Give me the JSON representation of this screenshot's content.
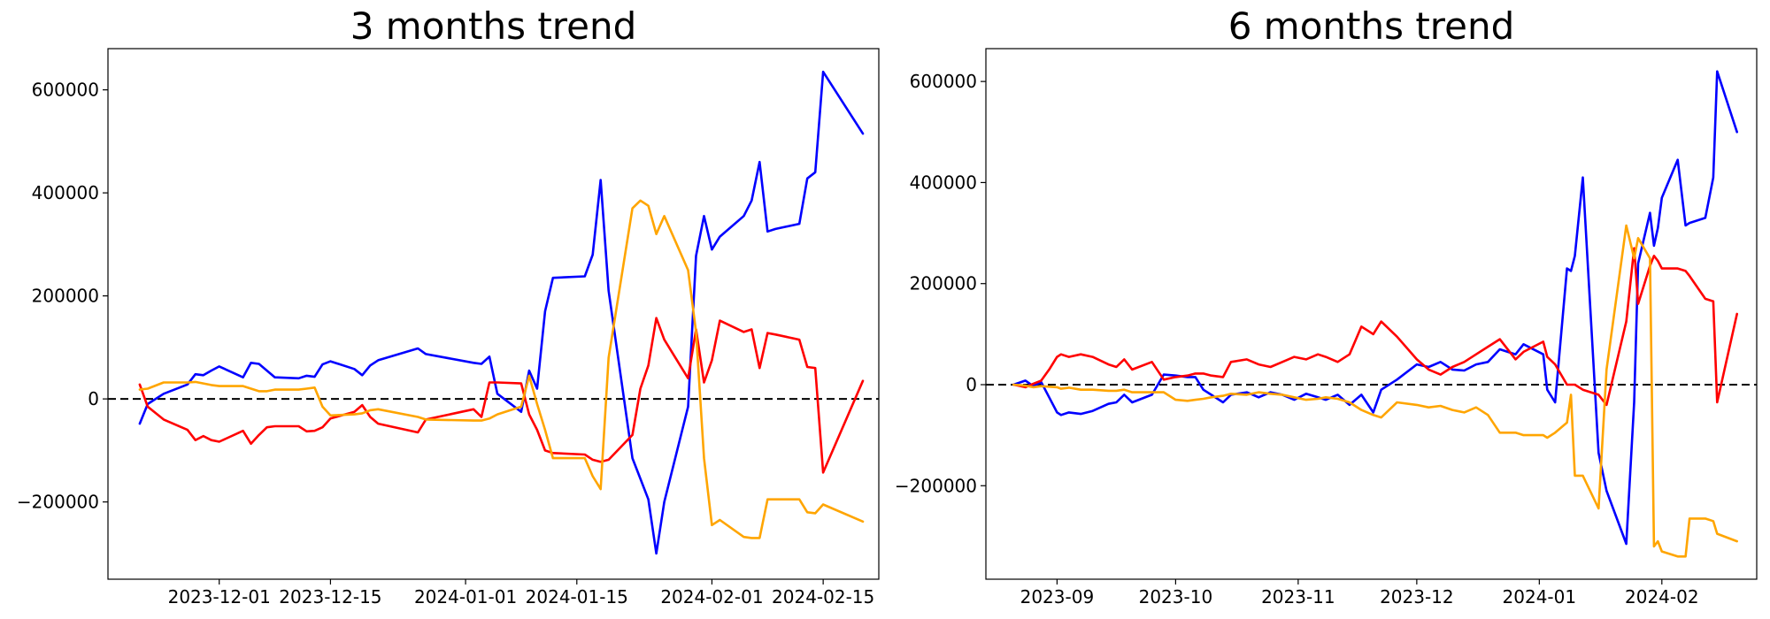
{
  "chart_data": [
    {
      "type": "line",
      "title": "3 months trend",
      "xlabel": "",
      "ylabel": "",
      "x_type": "date",
      "xlim": [
        "2023-11-17",
        "2024-02-22"
      ],
      "ylim": [
        -350000,
        680000
      ],
      "x_ticks": [
        "2023-12-01",
        "2023-12-15",
        "2024-01-01",
        "2024-01-15",
        "2024-02-01",
        "2024-02-15"
      ],
      "y_ticks": [
        600000,
        400000,
        200000,
        0,
        -200000
      ],
      "y_tick_labels": [
        "600000",
        "400000",
        "200000",
        "0",
        "−200000"
      ],
      "reference_line": {
        "y": 0,
        "style": "dashed",
        "color": "#000000"
      },
      "grid": false,
      "series": [
        {
          "color": "#0000ff",
          "x": [
            "2023-11-21",
            "2023-11-22",
            "2023-11-24",
            "2023-11-27",
            "2023-11-28",
            "2023-11-29",
            "2023-11-30",
            "2023-12-01",
            "2023-12-04",
            "2023-12-05",
            "2023-12-06",
            "2023-12-07",
            "2023-12-08",
            "2023-12-11",
            "2023-12-12",
            "2023-12-13",
            "2023-12-14",
            "2023-12-15",
            "2023-12-18",
            "2023-12-19",
            "2023-12-20",
            "2023-12-21",
            "2023-12-26",
            "2023-12-27",
            "2024-01-02",
            "2024-01-03",
            "2024-01-04",
            "2024-01-05",
            "2024-01-08",
            "2024-01-09",
            "2024-01-10",
            "2024-01-11",
            "2024-01-12",
            "2024-01-16",
            "2024-01-17",
            "2024-01-18",
            "2024-01-19",
            "2024-01-22",
            "2024-01-23",
            "2024-01-24",
            "2024-01-25",
            "2024-01-26",
            "2024-01-29",
            "2024-01-30",
            "2024-01-31",
            "2024-02-01",
            "2024-02-02",
            "2024-02-05",
            "2024-02-06",
            "2024-02-07",
            "2024-02-08",
            "2024-02-09",
            "2024-02-12",
            "2024-02-13",
            "2024-02-14",
            "2024-02-15",
            "2024-02-20"
          ],
          "values": [
            -48000,
            -10000,
            10000,
            28000,
            48000,
            46000,
            55000,
            63000,
            42000,
            70000,
            68000,
            55000,
            42000,
            40000,
            45000,
            43000,
            67000,
            73000,
            58000,
            46000,
            65000,
            75000,
            98000,
            87000,
            70000,
            68000,
            82000,
            10000,
            -25000,
            55000,
            20000,
            170000,
            235000,
            238000,
            280000,
            425000,
            210000,
            -115000,
            -155000,
            -195000,
            -300000,
            -200000,
            -15000,
            278000,
            355000,
            290000,
            315000,
            355000,
            385000,
            460000,
            325000,
            330000,
            340000,
            428000,
            440000,
            635000,
            515000
          ]
        },
        {
          "color": "#ff0000",
          "x": [
            "2023-11-21",
            "2023-11-22",
            "2023-11-24",
            "2023-11-27",
            "2023-11-28",
            "2023-11-29",
            "2023-11-30",
            "2023-12-01",
            "2023-12-04",
            "2023-12-05",
            "2023-12-06",
            "2023-12-07",
            "2023-12-08",
            "2023-12-11",
            "2023-12-12",
            "2023-12-13",
            "2023-12-14",
            "2023-12-15",
            "2023-12-18",
            "2023-12-19",
            "2023-12-20",
            "2023-12-21",
            "2023-12-26",
            "2023-12-27",
            "2024-01-02",
            "2024-01-03",
            "2024-01-04",
            "2024-01-05",
            "2024-01-08",
            "2024-01-09",
            "2024-01-10",
            "2024-01-11",
            "2024-01-12",
            "2024-01-16",
            "2024-01-17",
            "2024-01-18",
            "2024-01-19",
            "2024-01-22",
            "2024-01-23",
            "2024-01-24",
            "2024-01-25",
            "2024-01-26",
            "2024-01-29",
            "2024-01-30",
            "2024-01-31",
            "2024-02-01",
            "2024-02-02",
            "2024-02-05",
            "2024-02-06",
            "2024-02-07",
            "2024-02-08",
            "2024-02-09",
            "2024-02-12",
            "2024-02-13",
            "2024-02-14",
            "2024-02-15",
            "2024-02-20"
          ],
          "values": [
            28000,
            -15000,
            -40000,
            -60000,
            -80000,
            -72000,
            -80000,
            -83000,
            -62000,
            -87000,
            -70000,
            -55000,
            -53000,
            -53000,
            -63000,
            -62000,
            -55000,
            -38000,
            -25000,
            -12000,
            -35000,
            -48000,
            -65000,
            -40000,
            -20000,
            -35000,
            32000,
            32000,
            30000,
            -30000,
            -60000,
            -100000,
            -105000,
            -108000,
            -118000,
            -122000,
            -118000,
            -70000,
            20000,
            65000,
            157000,
            115000,
            40000,
            135000,
            32000,
            75000,
            152000,
            130000,
            135000,
            60000,
            128000,
            125000,
            115000,
            62000,
            60000,
            -143000,
            35000
          ]
        },
        {
          "color": "#ffa500",
          "x": [
            "2023-11-21",
            "2023-11-22",
            "2023-11-24",
            "2023-11-27",
            "2023-11-28",
            "2023-11-29",
            "2023-11-30",
            "2023-12-01",
            "2023-12-04",
            "2023-12-05",
            "2023-12-06",
            "2023-12-07",
            "2023-12-08",
            "2023-12-11",
            "2023-12-12",
            "2023-12-13",
            "2023-12-14",
            "2023-12-15",
            "2023-12-18",
            "2023-12-19",
            "2023-12-20",
            "2023-12-21",
            "2023-12-26",
            "2023-12-27",
            "2024-01-02",
            "2024-01-03",
            "2024-01-04",
            "2024-01-05",
            "2024-01-08",
            "2024-01-09",
            "2024-01-10",
            "2024-01-11",
            "2024-01-12",
            "2024-01-16",
            "2024-01-17",
            "2024-01-18",
            "2024-01-19",
            "2024-01-22",
            "2024-01-23",
            "2024-01-24",
            "2024-01-25",
            "2024-01-26",
            "2024-01-29",
            "2024-01-30",
            "2024-01-31",
            "2024-02-01",
            "2024-02-02",
            "2024-02-05",
            "2024-02-06",
            "2024-02-07",
            "2024-02-08",
            "2024-02-09",
            "2024-02-12",
            "2024-02-13",
            "2024-02-14",
            "2024-02-15",
            "2024-02-20"
          ],
          "values": [
            18000,
            20000,
            32000,
            32000,
            33000,
            30000,
            27000,
            25000,
            25000,
            20000,
            15000,
            15000,
            18000,
            18000,
            20000,
            22000,
            -15000,
            -32000,
            -30000,
            -28000,
            -22000,
            -20000,
            -35000,
            -40000,
            -42000,
            -42000,
            -38000,
            -30000,
            -15000,
            45000,
            -10000,
            -60000,
            -115000,
            -115000,
            -150000,
            -175000,
            80000,
            370000,
            385000,
            375000,
            320000,
            355000,
            250000,
            130000,
            -115000,
            -245000,
            -235000,
            -268000,
            -270000,
            -270000,
            -195000,
            -195000,
            -195000,
            -220000,
            -222000,
            -205000,
            -238000
          ]
        }
      ]
    },
    {
      "type": "line",
      "title": "6 months trend",
      "xlabel": "",
      "ylabel": "",
      "x_type": "date",
      "xlim": [
        "2023-08-14",
        "2024-02-25"
      ],
      "ylim": [
        -385000,
        665000
      ],
      "x_ticks": [
        "2023-09",
        "2023-10",
        "2023-11",
        "2023-12",
        "2024-01",
        "2024-02"
      ],
      "x_tick_dates": [
        "2023-09-01",
        "2023-10-01",
        "2023-11-01",
        "2023-12-01",
        "2024-01-01",
        "2024-02-01"
      ],
      "y_ticks": [
        600000,
        400000,
        200000,
        0,
        -200000
      ],
      "y_tick_labels": [
        "600000",
        "400000",
        "200000",
        "0",
        "−200000"
      ],
      "reference_line": {
        "y": 0,
        "style": "dashed",
        "color": "#000000"
      },
      "grid": false,
      "series": [
        {
          "color": "#0000ff",
          "x": [
            "2023-08-21",
            "2023-08-24",
            "2023-08-26",
            "2023-08-28",
            "2023-08-30",
            "2023-09-01",
            "2023-09-02",
            "2023-09-04",
            "2023-09-07",
            "2023-09-10",
            "2023-09-14",
            "2023-09-16",
            "2023-09-18",
            "2023-09-20",
            "2023-09-25",
            "2023-09-28",
            "2023-10-01",
            "2023-10-04",
            "2023-10-06",
            "2023-10-08",
            "2023-10-10",
            "2023-10-13",
            "2023-10-15",
            "2023-10-19",
            "2023-10-22",
            "2023-10-25",
            "2023-10-28",
            "2023-10-31",
            "2023-11-03",
            "2023-11-06",
            "2023-11-08",
            "2023-11-11",
            "2023-11-14",
            "2023-11-17",
            "2023-11-20",
            "2023-11-22",
            "2023-11-26",
            "2023-12-01",
            "2023-12-04",
            "2023-12-07",
            "2023-12-10",
            "2023-12-13",
            "2023-12-16",
            "2023-12-19",
            "2023-12-22",
            "2023-12-26",
            "2023-12-28",
            "2024-01-02",
            "2024-01-03",
            "2024-01-05",
            "2024-01-08",
            "2024-01-09",
            "2024-01-10",
            "2024-01-12",
            "2024-01-16",
            "2024-01-18",
            "2024-01-23",
            "2024-01-25",
            "2024-01-26",
            "2024-01-29",
            "2024-01-30",
            "2024-01-31",
            "2024-02-01",
            "2024-02-05",
            "2024-02-07",
            "2024-02-08",
            "2024-02-12",
            "2024-02-14",
            "2024-02-15",
            "2024-02-20"
          ],
          "values": [
            0,
            8000,
            -3000,
            5000,
            -25000,
            -55000,
            -60000,
            -55000,
            -58000,
            -52000,
            -38000,
            -35000,
            -20000,
            -35000,
            -20000,
            20000,
            18000,
            15000,
            15000,
            -10000,
            -20000,
            -35000,
            -20000,
            -15000,
            -25000,
            -15000,
            -20000,
            -30000,
            -18000,
            -25000,
            -30000,
            -20000,
            -40000,
            -20000,
            -55000,
            -10000,
            10000,
            40000,
            35000,
            45000,
            30000,
            28000,
            40000,
            45000,
            70000,
            60000,
            80000,
            60000,
            -10000,
            -35000,
            230000,
            225000,
            255000,
            410000,
            -135000,
            -210000,
            -315000,
            -35000,
            240000,
            340000,
            275000,
            310000,
            370000,
            445000,
            315000,
            320000,
            330000,
            410000,
            620000,
            500000
          ]
        },
        {
          "color": "#ff0000",
          "x": [
            "2023-08-21",
            "2023-08-24",
            "2023-08-26",
            "2023-08-28",
            "2023-08-30",
            "2023-09-01",
            "2023-09-02",
            "2023-09-04",
            "2023-09-07",
            "2023-09-10",
            "2023-09-14",
            "2023-09-16",
            "2023-09-18",
            "2023-09-20",
            "2023-09-25",
            "2023-09-28",
            "2023-10-01",
            "2023-10-04",
            "2023-10-06",
            "2023-10-08",
            "2023-10-10",
            "2023-10-13",
            "2023-10-15",
            "2023-10-19",
            "2023-10-22",
            "2023-10-25",
            "2023-10-28",
            "2023-10-31",
            "2023-11-03",
            "2023-11-06",
            "2023-11-08",
            "2023-11-11",
            "2023-11-14",
            "2023-11-17",
            "2023-11-20",
            "2023-11-22",
            "2023-11-26",
            "2023-12-01",
            "2023-12-04",
            "2023-12-07",
            "2023-12-10",
            "2023-12-13",
            "2023-12-16",
            "2023-12-19",
            "2023-12-22",
            "2023-12-26",
            "2023-12-28",
            "2024-01-02",
            "2024-01-03",
            "2024-01-05",
            "2024-01-08",
            "2024-01-09",
            "2024-01-10",
            "2024-01-12",
            "2024-01-16",
            "2024-01-18",
            "2024-01-23",
            "2024-01-25",
            "2024-01-26",
            "2024-01-29",
            "2024-01-30",
            "2024-01-31",
            "2024-02-01",
            "2024-02-05",
            "2024-02-07",
            "2024-02-08",
            "2024-02-12",
            "2024-02-14",
            "2024-02-15",
            "2024-02-20"
          ],
          "values": [
            0,
            -5000,
            2000,
            8000,
            30000,
            55000,
            60000,
            55000,
            60000,
            55000,
            40000,
            35000,
            50000,
            30000,
            45000,
            10000,
            15000,
            18000,
            22000,
            22000,
            18000,
            15000,
            45000,
            50000,
            40000,
            35000,
            45000,
            55000,
            50000,
            60000,
            55000,
            45000,
            60000,
            115000,
            100000,
            125000,
            95000,
            50000,
            30000,
            20000,
            35000,
            45000,
            60000,
            75000,
            90000,
            50000,
            65000,
            85000,
            55000,
            40000,
            0,
            0,
            0,
            -10000,
            -20000,
            -40000,
            125000,
            270000,
            160000,
            235000,
            255000,
            245000,
            230000,
            230000,
            225000,
            215000,
            170000,
            165000,
            -35000,
            140000
          ]
        },
        {
          "color": "#ffa500",
          "x": [
            "2023-08-21",
            "2023-08-24",
            "2023-08-26",
            "2023-08-28",
            "2023-08-30",
            "2023-09-01",
            "2023-09-02",
            "2023-09-04",
            "2023-09-07",
            "2023-09-10",
            "2023-09-14",
            "2023-09-16",
            "2023-09-18",
            "2023-09-20",
            "2023-09-25",
            "2023-09-28",
            "2023-10-01",
            "2023-10-04",
            "2023-10-06",
            "2023-10-08",
            "2023-10-10",
            "2023-10-13",
            "2023-10-15",
            "2023-10-19",
            "2023-10-22",
            "2023-10-25",
            "2023-10-28",
            "2023-10-31",
            "2023-11-03",
            "2023-11-06",
            "2023-11-08",
            "2023-11-11",
            "2023-11-14",
            "2023-11-17",
            "2023-11-20",
            "2023-11-22",
            "2023-11-26",
            "2023-12-01",
            "2023-12-04",
            "2023-12-07",
            "2023-12-10",
            "2023-12-13",
            "2023-12-16",
            "2023-12-19",
            "2023-12-22",
            "2023-12-26",
            "2023-12-28",
            "2024-01-02",
            "2024-01-03",
            "2024-01-05",
            "2024-01-08",
            "2024-01-09",
            "2024-01-10",
            "2024-01-12",
            "2024-01-16",
            "2024-01-18",
            "2024-01-23",
            "2024-01-25",
            "2024-01-26",
            "2024-01-29",
            "2024-01-30",
            "2024-01-31",
            "2024-02-01",
            "2024-02-05",
            "2024-02-07",
            "2024-02-08",
            "2024-02-12",
            "2024-02-14",
            "2024-02-15",
            "2024-02-20"
          ],
          "values": [
            0,
            -2000,
            -5000,
            -3000,
            -4000,
            -5000,
            -8000,
            -6000,
            -10000,
            -10000,
            -12000,
            -12000,
            -10000,
            -15000,
            -15000,
            -15000,
            -30000,
            -32000,
            -30000,
            -28000,
            -25000,
            -22000,
            -18000,
            -20000,
            -15000,
            -18000,
            -20000,
            -25000,
            -30000,
            -28000,
            -25000,
            -28000,
            -35000,
            -50000,
            -60000,
            -65000,
            -35000,
            -40000,
            -45000,
            -42000,
            -50000,
            -55000,
            -45000,
            -60000,
            -95000,
            -95000,
            -100000,
            -100000,
            -105000,
            -95000,
            -75000,
            -20000,
            -180000,
            -180000,
            -245000,
            30000,
            315000,
            250000,
            290000,
            250000,
            -320000,
            -310000,
            -330000,
            -340000,
            -340000,
            -265000,
            -265000,
            -270000,
            -295000,
            -310000
          ]
        }
      ]
    }
  ]
}
